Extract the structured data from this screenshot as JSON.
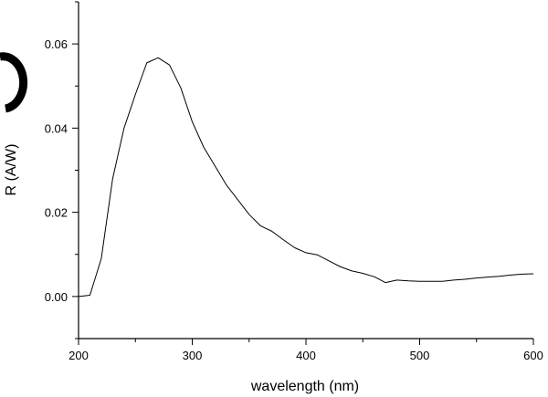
{
  "chart_data": {
    "type": "line",
    "title": "",
    "xlabel": "wavelength (nm)",
    "ylabel": "R (A/W)",
    "xlim": [
      200,
      600
    ],
    "ylim": [
      -0.01,
      0.07
    ],
    "xticks": [
      200,
      300,
      400,
      500,
      600
    ],
    "xtick_labels": [
      "200",
      "300",
      "400",
      "500",
      "600"
    ],
    "yticks": [
      0.0,
      0.02,
      0.04,
      0.06
    ],
    "ytick_labels": [
      "0.00",
      "0.02",
      "0.04",
      "0.06"
    ],
    "grid": false,
    "legend": "none",
    "series": [
      {
        "name": "R",
        "color": "#000000",
        "x": [
          200,
          210,
          220,
          230,
          240,
          250,
          260,
          270,
          280,
          290,
          300,
          310,
          320,
          330,
          340,
          350,
          360,
          370,
          380,
          390,
          400,
          410,
          420,
          430,
          440,
          450,
          460,
          470,
          480,
          490,
          500,
          510,
          520,
          530,
          540,
          550,
          560,
          570,
          580,
          590,
          600
        ],
        "y": [
          0.0,
          0.0003,
          0.009,
          0.028,
          0.04,
          0.048,
          0.0555,
          0.0567,
          0.055,
          0.0495,
          0.0415,
          0.0355,
          0.031,
          0.0265,
          0.023,
          0.0195,
          0.0168,
          0.0155,
          0.0135,
          0.0116,
          0.0104,
          0.0099,
          0.0085,
          0.0071,
          0.0061,
          0.0055,
          0.0047,
          0.0033,
          0.0039,
          0.0037,
          0.0036,
          0.0036,
          0.0036,
          0.0039,
          0.0041,
          0.0044,
          0.0046,
          0.0048,
          0.0051,
          0.0053,
          0.0054
        ]
      }
    ]
  }
}
